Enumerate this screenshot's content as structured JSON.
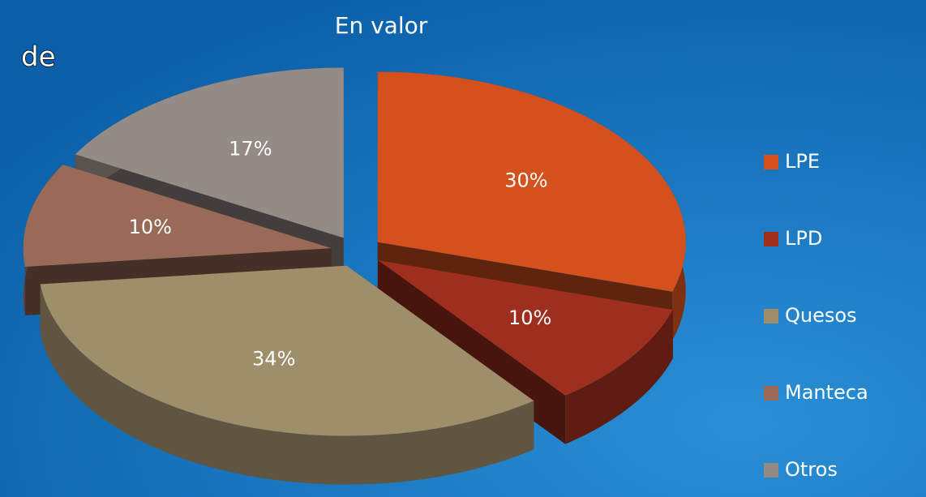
{
  "slide_text": "de",
  "chart_data": {
    "type": "pie3d",
    "title": "En valor",
    "categories": [
      "LPE",
      "LPD",
      "Quesos",
      "Manteca",
      "Otros"
    ],
    "values": [
      30,
      10,
      34,
      10,
      17
    ],
    "value_labels": [
      "30%",
      "10%",
      "34%",
      "10%",
      "17%"
    ],
    "colors": [
      "#d4501c",
      "#9e2e1e",
      "#9e8e6a",
      "#9a6a58",
      "#948a86"
    ],
    "legend": "right"
  }
}
